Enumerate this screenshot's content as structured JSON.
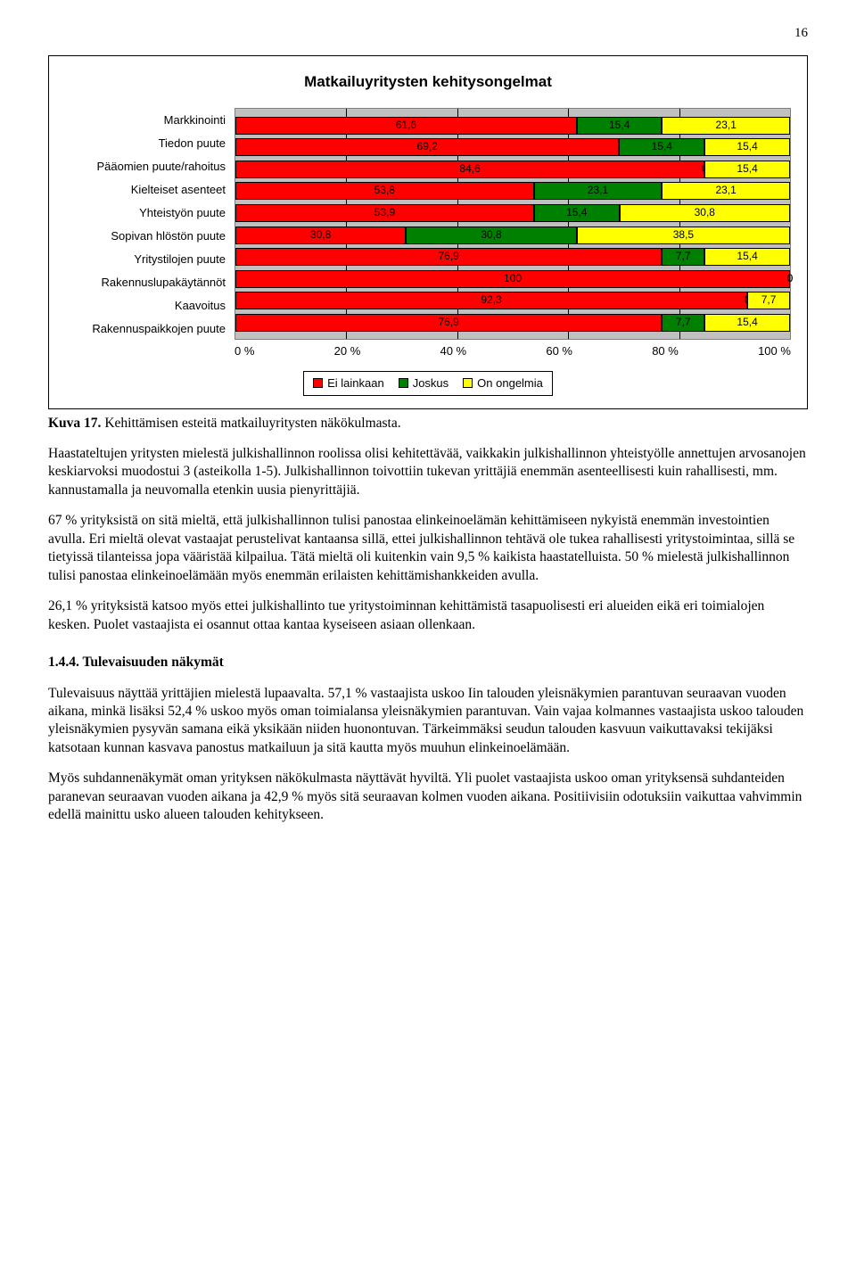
{
  "page_number": "16",
  "chart": {
    "title": "Matkailuyritysten kehitysongelmat",
    "type": "bar-stacked-horizontal",
    "colors": {
      "ei": "#ff0000",
      "joskus": "#008000",
      "on": "#ffff00"
    },
    "background": "#c0c0c0",
    "grid_color": "#000000",
    "categories": [
      "Markkinointi",
      "Tiedon puute",
      "Pääomien puute/rahoitus",
      "Kielteiset asenteet",
      "Yhteistyön puute",
      "Sopivan hlöstön puute",
      "Yritystilojen puute",
      "Rakennuslupakäytännöt",
      "Kaavoitus",
      "Rakennuspaikkojen puute"
    ],
    "rows": [
      {
        "v": [
          61.6,
          15.4,
          23.1
        ],
        "l": [
          "61,6",
          "15,4",
          "23,1"
        ]
      },
      {
        "v": [
          69.2,
          15.4,
          15.4
        ],
        "l": [
          "69,2",
          "15,4",
          "15,4"
        ]
      },
      {
        "v": [
          84.6,
          0,
          15.4
        ],
        "l": [
          "84,6",
          "0",
          "15,4"
        ]
      },
      {
        "v": [
          53.8,
          23.1,
          23.1
        ],
        "l": [
          "53,8",
          "23,1",
          "23,1"
        ]
      },
      {
        "v": [
          53.9,
          15.4,
          30.8
        ],
        "l": [
          "53,9",
          "15,4",
          "30,8"
        ]
      },
      {
        "v": [
          30.8,
          30.8,
          38.5
        ],
        "l": [
          "30,8",
          "30,8",
          "38,5"
        ]
      },
      {
        "v": [
          76.9,
          7.7,
          15.4
        ],
        "l": [
          "76,9",
          "7,7",
          "15,4"
        ]
      },
      {
        "v": [
          100,
          0,
          0
        ],
        "l": [
          "100",
          "0",
          "0"
        ]
      },
      {
        "v": [
          92.3,
          0,
          7.7
        ],
        "l": [
          "92,3",
          "0",
          "7,7"
        ]
      },
      {
        "v": [
          76.9,
          7.7,
          15.4
        ],
        "l": [
          "76,9",
          "7,7",
          "15,4"
        ]
      }
    ],
    "x_ticks": [
      "0 %",
      "20 %",
      "40 %",
      "60 %",
      "80 %",
      "100 %"
    ],
    "x_tick_positions": [
      0,
      20,
      40,
      60,
      80,
      100
    ],
    "legend": [
      "Ei lainkaan",
      "Joskus",
      "On ongelmia"
    ]
  },
  "caption_prefix": "Kuva 17.",
  "caption_text": " Kehittämisen esteitä matkailuyritysten näkökulmasta.",
  "p1": "Haastateltujen yritysten mielestä julkishallinnon roolissa olisi kehitettävää, vaikkakin julkishallinnon yhteistyölle annettujen arvosanojen keskiarvoksi muodostui 3 (asteikolla 1-5). Julkishallinnon toivottiin tukevan yrittäjiä enemmän asenteellisesti kuin rahallisesti, mm. kannustamalla ja neuvomalla etenkin uusia pienyrittäjiä.",
  "p2": "67 % yrityksistä on sitä mieltä, että julkishallinnon tulisi panostaa elinkeinoelämän kehittämiseen nykyistä enemmän investointien avulla. Eri mieltä olevat vastaajat perustelivat kantaansa sillä, ettei julkishallinnon tehtävä ole tukea rahallisesti yritystoimintaa, sillä se tietyissä tilanteissa jopa vääristää kilpailua. Tätä mieltä oli kuitenkin vain 9,5 % kaikista haastatelluista. 50 % mielestä julkishallinnon tulisi panostaa elinkeinoelämään myös enemmän erilaisten kehittämishankkeiden avulla.",
  "p3": "26,1 % yrityksistä katsoo myös ettei julkishallinto tue yritystoiminnan kehittämistä tasapuolisesti eri alueiden eikä eri toimialojen kesken. Puolet vastaajista ei osannut ottaa kantaa kyseiseen asiaan ollenkaan.",
  "section_heading": "1.4.4. Tulevaisuuden näkymät",
  "p4": "Tulevaisuus näyttää yrittäjien mielestä lupaavalta. 57,1 % vastaajista uskoo Iin talouden yleisnäkymien parantuvan seuraavan vuoden aikana, minkä lisäksi 52,4 % uskoo myös oman toimialansa yleisnäkymien parantuvan. Vain vajaa kolmannes vastaajista uskoo talouden yleisnäkymien pysyvän samana eikä yksikään niiden huonontuvan. Tärkeimmäksi seudun talouden kasvuun vaikuttavaksi tekijäksi katsotaan kunnan kasvava panostus matkailuun ja sitä kautta myös muuhun elinkeinoelämään.",
  "p5": "Myös suhdannenäkymät oman yrityksen näkökulmasta näyttävät hyviltä. Yli puolet vastaajista uskoo oman yrityksensä suhdanteiden paranevan seuraavan vuoden aikana ja 42,9 % myös sitä seuraavan kolmen vuoden aikana. Positiivisiin odotuksiin vaikuttaa vahvimmin edellä mainittu usko alueen talouden kehitykseen."
}
